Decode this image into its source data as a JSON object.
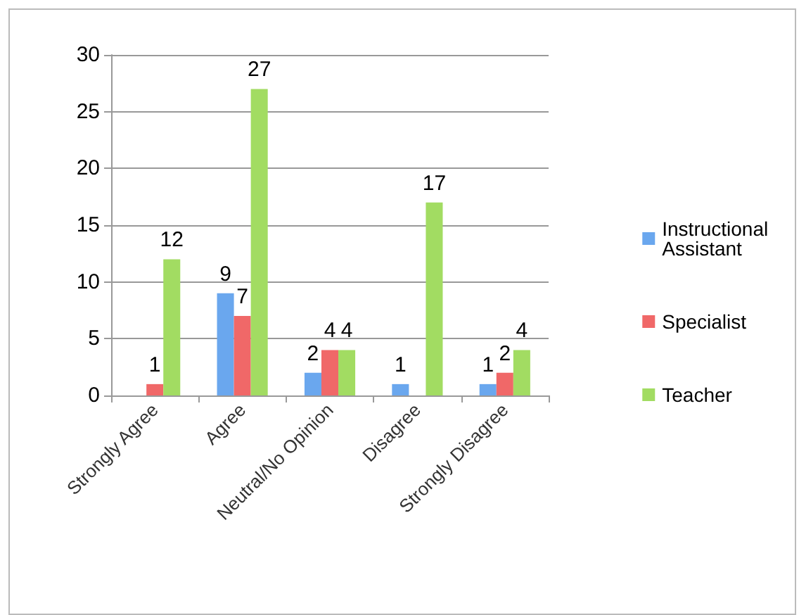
{
  "chart_data": {
    "type": "bar",
    "categories": [
      "Strongly Agree",
      "Agree",
      "Neutral/No Opinion",
      "Disagree",
      "Strongly Disagree"
    ],
    "series": [
      {
        "name": "Instructional Assistant",
        "color": "#6aa7ee",
        "values": [
          null,
          9,
          2,
          1,
          1
        ]
      },
      {
        "name": "Specialist",
        "color": "#f06868",
        "values": [
          1,
          7,
          4,
          null,
          2
        ]
      },
      {
        "name": "Teacher",
        "color": "#a2dc62",
        "values": [
          12,
          27,
          4,
          17,
          4
        ]
      }
    ],
    "ylim": [
      0,
      30
    ],
    "yticks": [
      0,
      5,
      10,
      15,
      20,
      25,
      30
    ],
    "grid": "y",
    "legend": "right",
    "data_labels": true
  }
}
